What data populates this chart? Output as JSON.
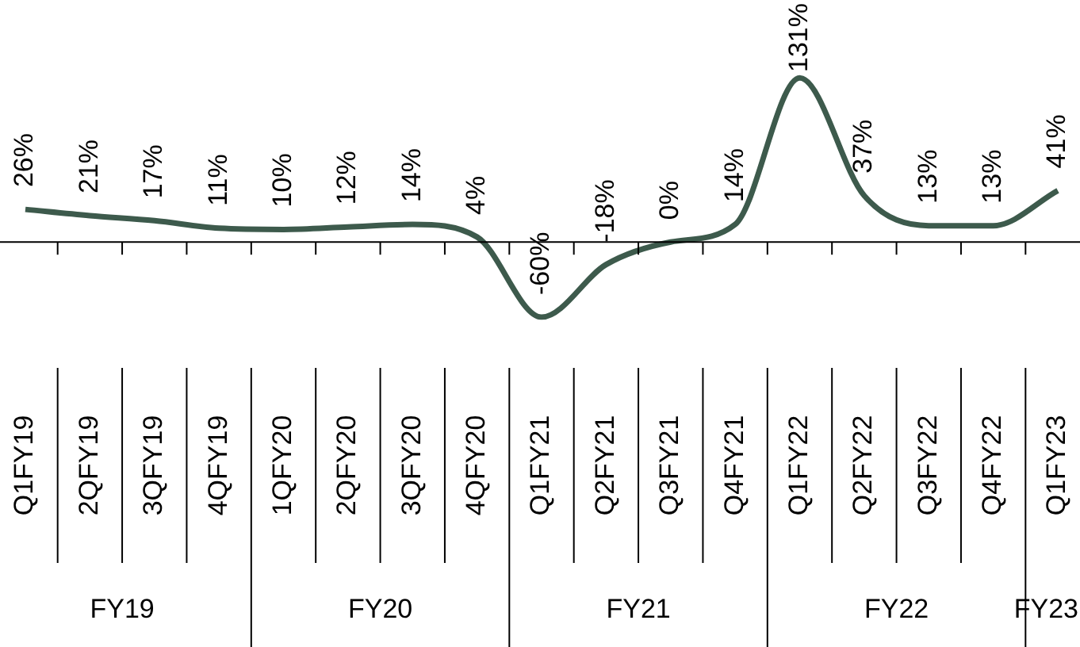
{
  "chart_data": {
    "type": "line",
    "categories": [
      "Q1FY19",
      "2QFY19",
      "3QFY19",
      "4QFY19",
      "1QFY20",
      "2QFY20",
      "3QFY20",
      "4QFY20",
      "Q1FY21",
      "Q2FY21",
      "Q3FY21",
      "Q4FY21",
      "Q1FY22",
      "Q2FY22",
      "Q3FY22",
      "Q4FY22",
      "Q1FY23"
    ],
    "values": [
      26,
      21,
      17,
      11,
      10,
      12,
      14,
      4,
      -60,
      -18,
      0,
      14,
      131,
      37,
      13,
      13,
      41
    ],
    "value_labels": [
      "26%",
      "21%",
      "17%",
      "11%",
      "10%",
      "12%",
      "14%",
      "4%",
      "-60%",
      "-18%",
      "0%",
      "14%",
      "131%",
      "37%",
      "13%",
      "13%",
      "41%"
    ],
    "color": "#3d5a4c",
    "annotations": [
      "FY19",
      "FY20",
      "FY21",
      "FY22",
      "FY23"
    ],
    "marker": "none",
    "legend": false
  }
}
